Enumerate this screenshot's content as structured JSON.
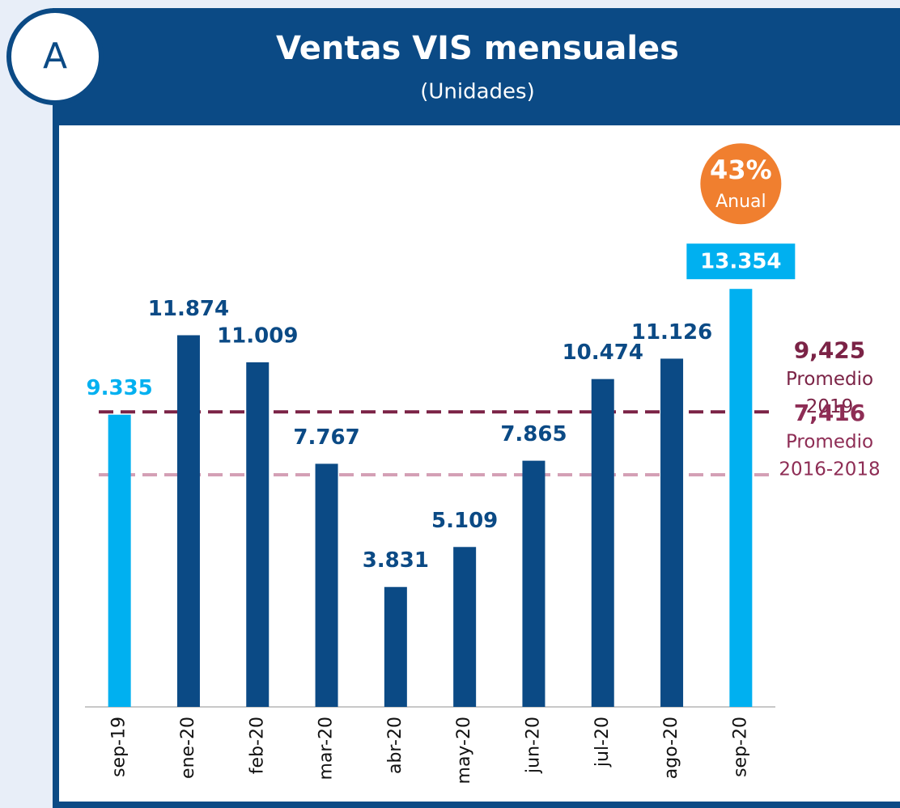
{
  "chart_data": {
    "type": "bar",
    "title": "Ventas VIS mensuales",
    "subtitle": "(Unidades)",
    "panel_letter": "A",
    "categories": [
      "sep-19",
      "ene-20",
      "feb-20",
      "mar-20",
      "abr-20",
      "may-20",
      "jun-20",
      "jul-20",
      "ago-20",
      "sep-20"
    ],
    "values": [
      9335,
      11874,
      11009,
      7767,
      3831,
      5109,
      7865,
      10474,
      11126,
      13354
    ],
    "value_labels": [
      "9.335",
      "11.874",
      "11.009",
      "7.767",
      "3.831",
      "5.109",
      "7.865",
      "10.474",
      "11.126",
      "13.354"
    ],
    "colors": [
      "#00b0f0",
      "#0b4a85",
      "#0b4a85",
      "#0b4a85",
      "#0b4a85",
      "#0b4a85",
      "#0b4a85",
      "#0b4a85",
      "#0b4a85",
      "#00b0f0"
    ],
    "highlight": 9,
    "badge": {
      "text": "43%",
      "sub": "Anual",
      "color": "#f07f2f"
    },
    "reference_lines": [
      {
        "value": 9425,
        "label": "9,425",
        "lines": [
          "Promedio",
          "2019"
        ],
        "color": "#7b2346"
      },
      {
        "value": 7416,
        "label": "7,416",
        "lines": [
          "Promedio",
          "2016-2018"
        ],
        "color": "#d4a0b5",
        "text_color": "#8e2d55"
      }
    ]
  }
}
